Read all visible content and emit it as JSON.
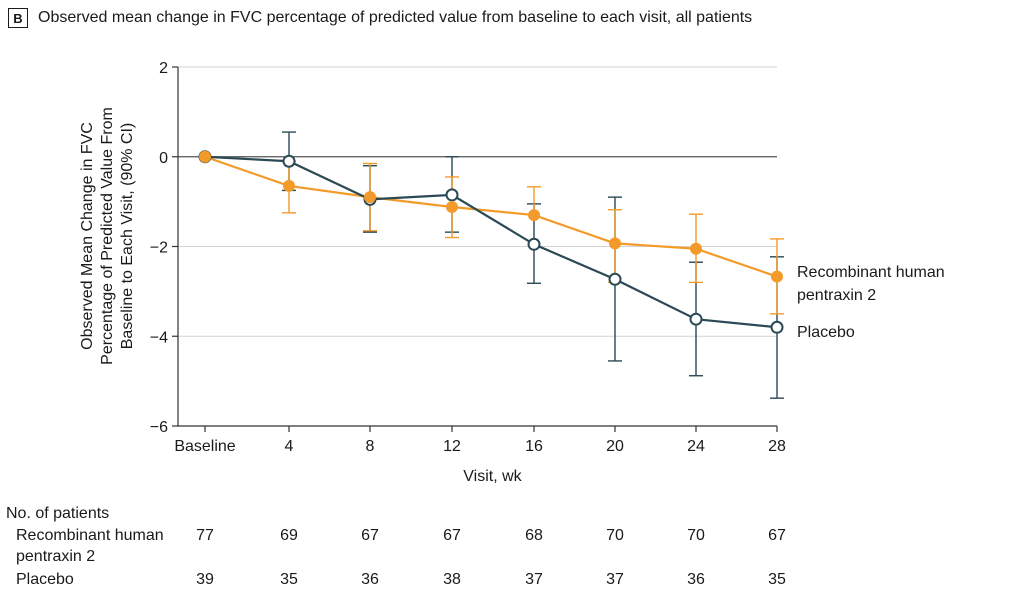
{
  "panel_label": "B",
  "chart_data": {
    "type": "line",
    "title": "Observed mean change in FVC percentage of predicted value from baseline to each visit, all patients",
    "xlabel": "Visit, wk",
    "ylabel_lines": [
      "Observed Mean Change in FVC",
      "Percentage of Predicted Value From",
      "Baseline to Each Visit, (90% CI)"
    ],
    "categories": [
      "Baseline",
      "4",
      "8",
      "12",
      "16",
      "20",
      "24",
      "28"
    ],
    "ylim": [
      -6,
      2
    ],
    "yticks": [
      "2",
      "0",
      "−2",
      "−4",
      "−6"
    ],
    "ytick_values": [
      2,
      0,
      -2,
      -4,
      -6
    ],
    "series": [
      {
        "name_lines": [
          "Recombinant human",
          "pentraxin 2"
        ],
        "color": "#f29b2a",
        "marker": "filled-circle",
        "values": [
          0,
          -0.65,
          -0.9,
          -1.12,
          -1.3,
          -1.93,
          -2.05,
          -2.67
        ],
        "ci_low": [
          0,
          -1.25,
          -1.65,
          -1.8,
          null,
          -2.8,
          -2.8,
          -3.5
        ],
        "ci_high": [
          0,
          -0.1,
          -0.15,
          -0.45,
          -0.67,
          -1.18,
          -1.28,
          -1.83
        ]
      },
      {
        "name_lines": [
          "Placebo"
        ],
        "color": "#2b4a55",
        "marker": "open-circle",
        "values": [
          0,
          -0.1,
          -0.95,
          -0.85,
          -1.95,
          -2.73,
          -3.62,
          -3.8
        ],
        "ci_low": [
          0,
          -0.75,
          -1.68,
          -1.68,
          -2.82,
          -4.55,
          -4.88,
          -5.38
        ],
        "ci_high": [
          0,
          0.55,
          -0.2,
          0,
          -1.05,
          -0.9,
          -2.35,
          -2.23
        ]
      }
    ]
  },
  "patients_table": {
    "heading": "No. of patients",
    "rows": [
      {
        "label_lines": [
          "Recombinant human",
          "pentraxin 2"
        ],
        "counts": [
          "77",
          "69",
          "67",
          "67",
          "68",
          "70",
          "70",
          "67"
        ]
      },
      {
        "label_lines": [
          "Placebo"
        ],
        "counts": [
          "39",
          "35",
          "36",
          "38",
          "37",
          "37",
          "36",
          "35"
        ]
      }
    ]
  }
}
